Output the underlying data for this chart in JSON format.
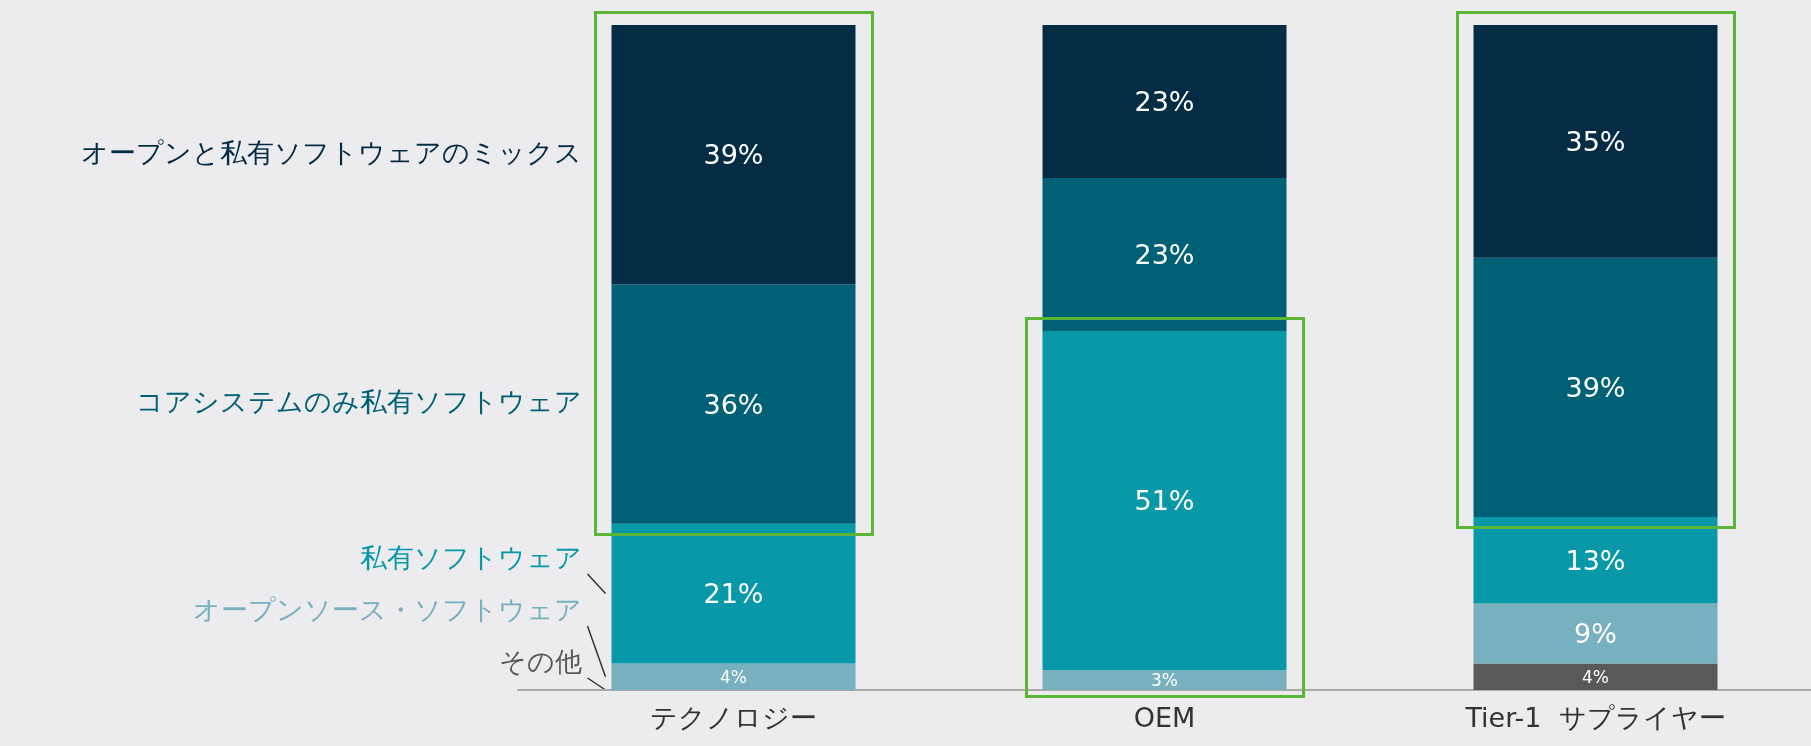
{
  "chart_data": {
    "type": "bar",
    "stacked": true,
    "categories": [
      "テクノロジー",
      "OEM",
      "Tier-1  サプライヤー"
    ],
    "series": [
      {
        "name": "その他",
        "color": "#595959",
        "values": [
          null,
          null,
          4
        ],
        "value_labels": [
          null,
          null,
          "4%"
        ]
      },
      {
        "name": "オープンソース・ソフトウェア",
        "color": "#77b0bf",
        "values": [
          4,
          3,
          9
        ],
        "value_labels": [
          "4%",
          "3%",
          "9%"
        ]
      },
      {
        "name": "私有ソフトウェア",
        "color": "#0898a8",
        "values": [
          21,
          51,
          13
        ],
        "value_labels": [
          "21%",
          "51%",
          "13%"
        ]
      },
      {
        "name": "コアシステムのみ私有ソフトウェア",
        "color": "#006075",
        "values": [
          36,
          23,
          39
        ],
        "value_labels": [
          "36%",
          "23%",
          "39%"
        ]
      },
      {
        "name": "オープンと私有ソフトウェアのミックス",
        "color": "#052c45",
        "values": [
          39,
          23,
          35
        ],
        "value_labels": [
          "39%",
          "23%",
          "35%"
        ]
      }
    ]
  }
}
